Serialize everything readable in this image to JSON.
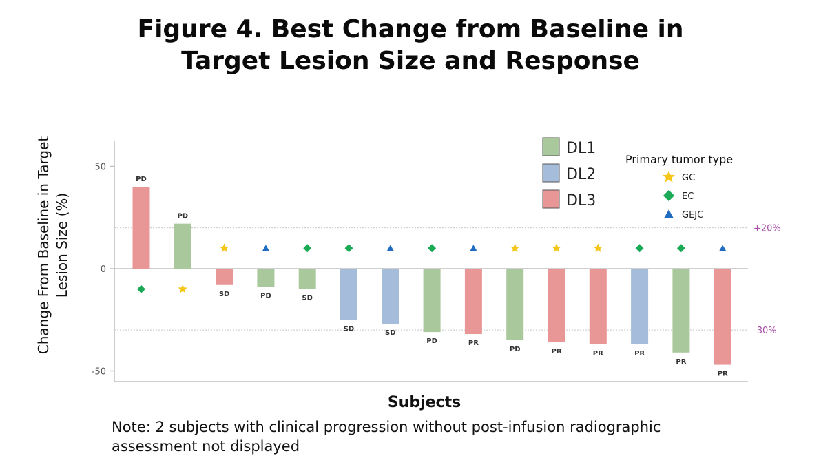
{
  "title_lines": [
    "Figure 4. Best Change from Baseline in",
    "Target Lesion Size and Response"
  ],
  "note": "Note: 2 subjects with clinical progression without post-infusion radiographic assessment not displayed",
  "colors": {
    "DL1": "#a9c89c",
    "DL2": "#a5bcda",
    "DL3": "#e99696",
    "GC": "#f5c518",
    "EC": "#1aaa55",
    "GEJC": "#1f6cc2",
    "threshold": "#a64ca6",
    "axis": "#bfbfbf"
  },
  "legend": {
    "dose_levels": [
      "DL1",
      "DL2",
      "DL3"
    ],
    "tumor_title": "Primary tumor type",
    "tumor_types": [
      {
        "label": "GC",
        "icon": "star-icon"
      },
      {
        "label": "EC",
        "icon": "diamond-icon"
      },
      {
        "label": "GEJC",
        "icon": "triangle-icon"
      }
    ]
  },
  "chart_data": {
    "type": "bar",
    "xlabel": "Subjects",
    "ylabel": [
      "Change From Baseline in Target",
      "Lesion Size (%)"
    ],
    "ylim": [
      -52,
      62
    ],
    "yticks": [
      50,
      0,
      -50
    ],
    "thresholds": [
      {
        "value": 20,
        "label": "+20%"
      },
      {
        "value": -30,
        "label": "-30%"
      }
    ],
    "subjects": [
      {
        "value": 40,
        "dose": "DL3",
        "response": "PD",
        "tumor": "EC"
      },
      {
        "value": 22,
        "dose": "DL1",
        "response": "PD",
        "tumor": "GC"
      },
      {
        "value": -8,
        "dose": "DL3",
        "response": "SD",
        "tumor": "GC"
      },
      {
        "value": -9,
        "dose": "DL1",
        "response": "PD",
        "tumor": "GEJC"
      },
      {
        "value": -10,
        "dose": "DL1",
        "response": "SD",
        "tumor": "EC"
      },
      {
        "value": -25,
        "dose": "DL2",
        "response": "SD",
        "tumor": "EC"
      },
      {
        "value": -27,
        "dose": "DL2",
        "response": "SD",
        "tumor": "GEJC"
      },
      {
        "value": -31,
        "dose": "DL1",
        "response": "PD",
        "tumor": "EC"
      },
      {
        "value": -32,
        "dose": "DL3",
        "response": "PR",
        "tumor": "GEJC"
      },
      {
        "value": -35,
        "dose": "DL1",
        "response": "PD",
        "tumor": "GC"
      },
      {
        "value": -36,
        "dose": "DL3",
        "response": "PR",
        "tumor": "GC"
      },
      {
        "value": -37,
        "dose": "DL3",
        "response": "PR",
        "tumor": "GC"
      },
      {
        "value": -37,
        "dose": "DL2",
        "response": "PR",
        "tumor": "EC"
      },
      {
        "value": -41,
        "dose": "DL1",
        "response": "PR",
        "tumor": "EC"
      },
      {
        "value": -47,
        "dose": "DL3",
        "response": "PR",
        "tumor": "GEJC"
      }
    ]
  }
}
